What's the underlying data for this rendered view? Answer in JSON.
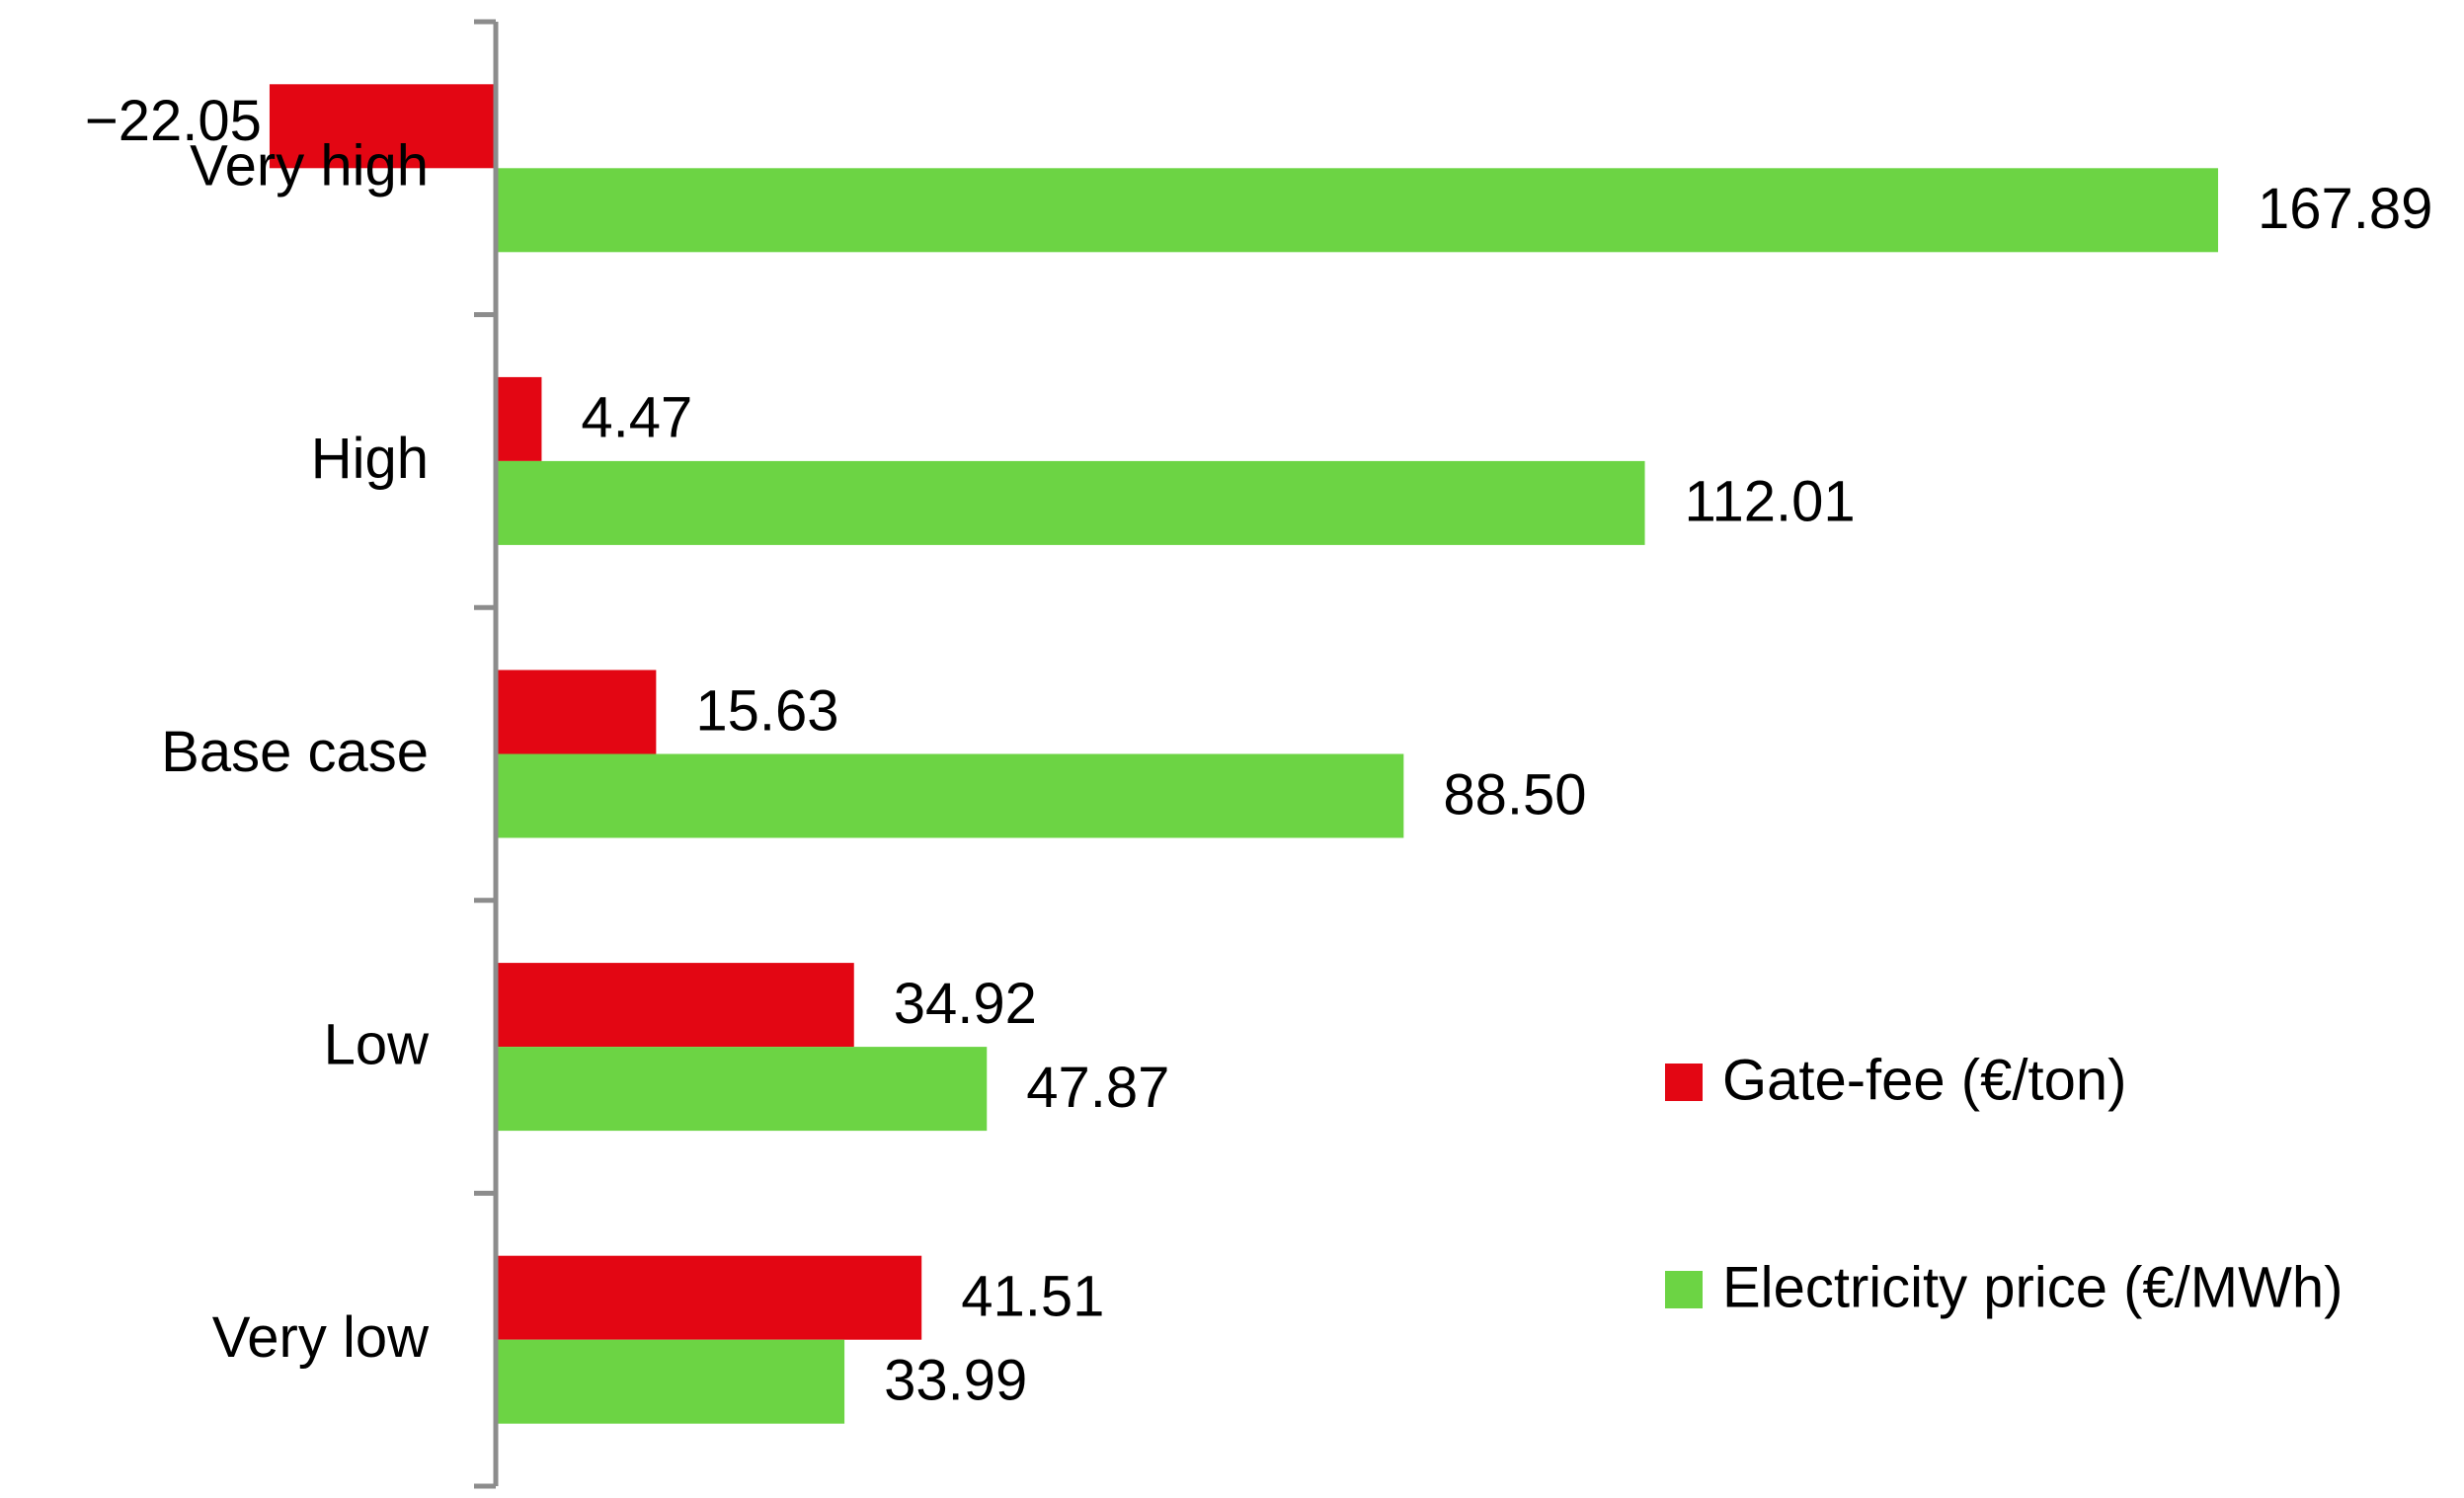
{
  "chart_data": {
    "type": "bar",
    "orientation": "horizontal",
    "categories": [
      "Very high",
      "High",
      "Base case",
      "Low",
      "Very low"
    ],
    "series": [
      {
        "name": "Gate-fee (€/ton)",
        "color": "#e30613",
        "values": [
          -22.05,
          4.47,
          15.63,
          34.92,
          41.51
        ],
        "labels": [
          "−22.05",
          "4.47",
          "15.63",
          "34.92",
          "41.51"
        ]
      },
      {
        "name": "Electricity price (€/MWh)",
        "color": "#6cd444",
        "values": [
          167.89,
          112.01,
          88.5,
          47.87,
          33.99
        ],
        "labels": [
          "167.89",
          "112.01",
          "88.50",
          "47.87",
          "33.99"
        ]
      }
    ],
    "xlim": [
      -22.05,
      167.89
    ],
    "grid": false,
    "axis_color": "#8c8c8c",
    "legend_position": "right"
  }
}
